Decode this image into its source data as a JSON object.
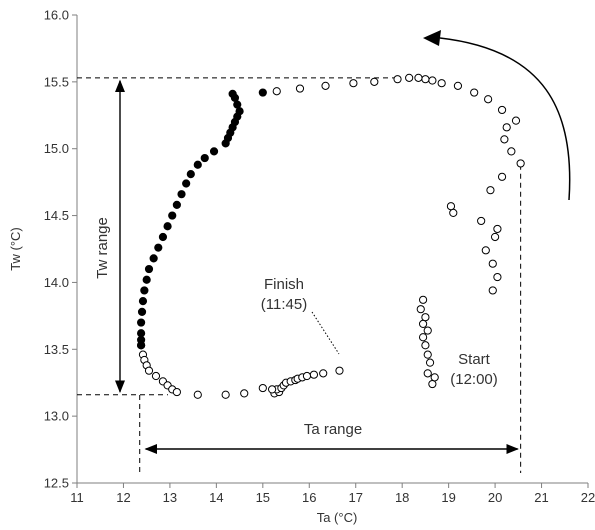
{
  "chart_data": {
    "type": "scatter",
    "title": "",
    "xlabel": "Ta (°C)",
    "ylabel": "Tw (°C)",
    "xlim": [
      11,
      22
    ],
    "ylim": [
      12.5,
      16.0
    ],
    "xticks": [
      "11",
      "12",
      "13",
      "14",
      "15",
      "16",
      "17",
      "18",
      "19",
      "20",
      "21",
      "22"
    ],
    "yticks": [
      "12.5",
      "13.0",
      "13.5",
      "14.0",
      "14.5",
      "15.0",
      "15.5",
      "16.0"
    ],
    "grid": false,
    "legend": "none",
    "colors": {
      "open_fill": "#ffffff",
      "closed_fill": "#000000",
      "line": "#000000",
      "axis": "#7f7f7f"
    },
    "series": [
      {
        "marker": "open-circle",
        "points": [
          [
            18.65,
            13.24
          ],
          [
            18.7,
            13.29
          ],
          [
            18.55,
            13.32
          ],
          [
            18.6,
            13.4
          ],
          [
            18.55,
            13.46
          ],
          [
            18.5,
            13.53
          ],
          [
            18.45,
            13.59
          ],
          [
            18.55,
            13.64
          ],
          [
            18.45,
            13.69
          ],
          [
            18.5,
            13.74
          ],
          [
            18.4,
            13.8
          ],
          [
            18.45,
            13.87
          ],
          [
            19.95,
            13.94
          ],
          [
            20.05,
            14.04
          ],
          [
            19.95,
            14.14
          ],
          [
            19.8,
            14.24
          ],
          [
            20.0,
            14.34
          ],
          [
            20.05,
            14.4
          ],
          [
            19.7,
            14.46
          ],
          [
            19.1,
            14.52
          ],
          [
            19.05,
            14.57
          ],
          [
            19.9,
            14.69
          ],
          [
            20.15,
            14.79
          ],
          [
            20.55,
            14.89
          ],
          [
            20.35,
            14.98
          ],
          [
            20.2,
            15.07
          ],
          [
            20.25,
            15.16
          ],
          [
            20.45,
            15.21
          ],
          [
            20.15,
            15.29
          ],
          [
            19.85,
            15.37
          ],
          [
            19.55,
            15.42
          ],
          [
            19.2,
            15.47
          ],
          [
            18.85,
            15.49
          ],
          [
            18.65,
            15.51
          ],
          [
            18.5,
            15.52
          ],
          [
            18.35,
            15.53
          ],
          [
            18.15,
            15.53
          ],
          [
            17.9,
            15.52
          ],
          [
            17.4,
            15.5
          ],
          [
            16.95,
            15.49
          ],
          [
            16.35,
            15.47
          ],
          [
            15.8,
            15.45
          ],
          [
            15.3,
            15.43
          ],
          [
            12.38,
            13.53
          ],
          [
            12.42,
            13.46
          ],
          [
            12.45,
            13.42
          ],
          [
            12.5,
            13.38
          ],
          [
            12.55,
            13.34
          ],
          [
            12.7,
            13.3
          ],
          [
            12.85,
            13.26
          ],
          [
            12.95,
            13.23
          ],
          [
            13.05,
            13.2
          ],
          [
            13.15,
            13.18
          ],
          [
            13.6,
            13.16
          ],
          [
            14.2,
            13.16
          ],
          [
            14.6,
            13.17
          ],
          [
            15.25,
            13.17
          ],
          [
            15.35,
            13.18
          ],
          [
            15.3,
            13.2
          ],
          [
            15.4,
            13.21
          ],
          [
            15.2,
            13.2
          ],
          [
            15.0,
            13.21
          ],
          [
            15.45,
            13.23
          ],
          [
            15.5,
            13.25
          ],
          [
            15.6,
            13.26
          ],
          [
            15.7,
            13.27
          ],
          [
            15.75,
            13.28
          ],
          [
            15.85,
            13.29
          ],
          [
            15.95,
            13.3
          ],
          [
            16.1,
            13.31
          ],
          [
            16.3,
            13.32
          ],
          [
            16.65,
            13.34
          ]
        ]
      },
      {
        "marker": "filled-circle",
        "points": [
          [
            14.4,
            15.38
          ],
          [
            14.45,
            15.33
          ],
          [
            14.5,
            15.28
          ],
          [
            14.45,
            15.24
          ],
          [
            14.4,
            15.2
          ],
          [
            14.35,
            15.16
          ],
          [
            14.3,
            15.12
          ],
          [
            14.25,
            15.08
          ],
          [
            14.2,
            15.04
          ],
          [
            13.95,
            14.98
          ],
          [
            13.75,
            14.93
          ],
          [
            13.6,
            14.88
          ],
          [
            13.45,
            14.81
          ],
          [
            13.35,
            14.74
          ],
          [
            13.25,
            14.66
          ],
          [
            13.15,
            14.58
          ],
          [
            13.05,
            14.5
          ],
          [
            12.95,
            14.42
          ],
          [
            12.85,
            14.34
          ],
          [
            12.75,
            14.26
          ],
          [
            12.65,
            14.18
          ],
          [
            12.55,
            14.1
          ],
          [
            12.5,
            14.02
          ],
          [
            12.45,
            13.94
          ],
          [
            12.42,
            13.86
          ],
          [
            12.4,
            13.78
          ],
          [
            12.38,
            13.7
          ],
          [
            12.38,
            13.62
          ],
          [
            12.38,
            13.57
          ],
          [
            12.38,
            13.53
          ],
          [
            14.35,
            15.41
          ],
          [
            15.0,
            15.42
          ]
        ]
      }
    ],
    "annotations": [
      {
        "text": "Tw range",
        "rotated": true
      },
      {
        "text": "Ta range"
      },
      {
        "text": "Finish",
        "text2": "(11:45)"
      },
      {
        "text": "Start",
        "text2": "(12:00)"
      }
    ],
    "guides": {
      "tw_range": [
        13.16,
        15.53
      ],
      "ta_range": [
        12.35,
        20.55
      ]
    }
  }
}
